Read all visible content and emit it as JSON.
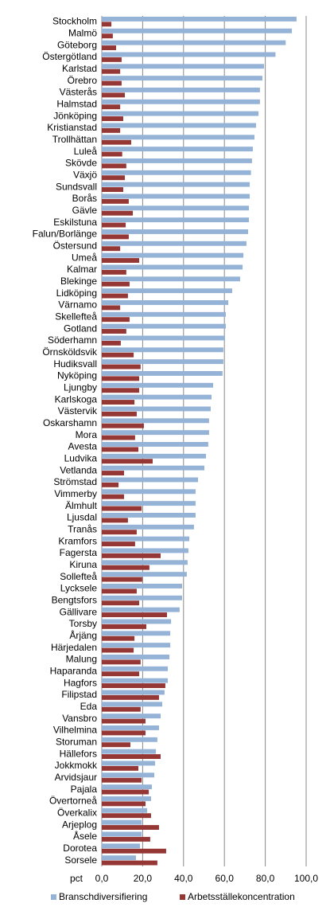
{
  "chart_data": {
    "type": "hbar",
    "x_label": "pct",
    "categories": [
      "Stockholm",
      "Malmö",
      "Göteborg",
      "Östergötland",
      "Karlstad",
      "Örebro",
      "Västerås",
      "Halmstad",
      "Jönköping",
      "Kristianstad",
      "Trollhättan",
      "Luleå",
      "Skövde",
      "Växjö",
      "Sundsvall",
      "Borås",
      "Gävle",
      "Eskilstuna",
      "Falun/Borlänge",
      "Östersund",
      "Umeå",
      "Kalmar",
      "Blekinge",
      "Lidköping",
      "Värnamo",
      "Skellefteå",
      "Gotland",
      "Söderhamn",
      "Örnsköldsvik",
      "Hudiksvall",
      "Nyköping",
      "Ljungby",
      "Karlskoga",
      "Västervik",
      "Oskarshamn",
      "Mora",
      "Avesta",
      "Ludvika",
      "Vetlanda",
      "Strömstad",
      "Vimmerby",
      "Älmhult",
      "Ljusdal",
      "Tranås",
      "Kramfors",
      "Fagersta",
      "Kiruna",
      "Sollefteå",
      "Lycksele",
      "Bengtsfors",
      "Gällivare",
      "Torsby",
      "Årjäng",
      "Härjedalen",
      "Malung",
      "Haparanda",
      "Hagfors",
      "Filipstad",
      "Eda",
      "Vansbro",
      "Vilhelmina",
      "Storuman",
      "Hällefors",
      "Jokkmokk",
      "Arvidsjaur",
      "Pajala",
      "Övertorneå",
      "Överkalix",
      "Arjeplog",
      "Åsele",
      "Dorotea",
      "Sorsele"
    ],
    "series": [
      {
        "name": "Branschdiversifiering",
        "color": "#95b3d7",
        "values": [
          95.3,
          93.0,
          90.0,
          85.0,
          79.4,
          78.6,
          77.4,
          77.4,
          76.7,
          75.5,
          74.7,
          73.9,
          73.5,
          73.0,
          72.4,
          72.4,
          72.0,
          72.0,
          71.6,
          70.8,
          69.3,
          68.9,
          67.7,
          63.8,
          61.9,
          60.7,
          60.7,
          60.3,
          59.5,
          59.5,
          59.1,
          54.5,
          53.7,
          53.3,
          52.5,
          52.5,
          52.1,
          51.0,
          50.2,
          47.1,
          45.9,
          45.9,
          45.9,
          45.1,
          42.8,
          42.4,
          42.0,
          41.6,
          39.3,
          39.3,
          38.1,
          33.9,
          33.5,
          33.5,
          33.1,
          32.3,
          32.3,
          30.7,
          29.6,
          28.8,
          28.0,
          27.2,
          26.5,
          26.1,
          25.7,
          24.5,
          24.1,
          22.2,
          19.5,
          19.5,
          18.7,
          16.7
        ]
      },
      {
        "name": "Arbetsställekoncentration",
        "color": "#953735",
        "values": [
          4.7,
          5.4,
          7.0,
          9.7,
          9.0,
          9.7,
          11.3,
          9.0,
          10.5,
          9.0,
          14.4,
          10.0,
          12.0,
          11.3,
          10.5,
          13.2,
          15.2,
          11.7,
          13.2,
          9.0,
          18.3,
          12.0,
          13.6,
          12.8,
          9.0,
          13.6,
          12.0,
          9.3,
          15.6,
          19.0,
          18.3,
          18.3,
          16.0,
          17.1,
          20.6,
          16.3,
          17.9,
          24.9,
          10.9,
          8.2,
          10.9,
          19.5,
          12.8,
          17.1,
          16.3,
          28.8,
          23.3,
          19.8,
          17.1,
          18.3,
          31.9,
          21.8,
          16.0,
          15.6,
          19.0,
          18.3,
          31.1,
          28.0,
          19.0,
          21.4,
          21.4,
          14.0,
          28.8,
          17.9,
          19.5,
          23.0,
          21.4,
          24.1,
          28.0,
          23.7,
          31.5,
          27.2
        ]
      }
    ],
    "xlim": [
      0,
      100
    ],
    "xticks": [
      {
        "value": 0,
        "label": "0,0"
      },
      {
        "value": 20,
        "label": "20,0"
      },
      {
        "value": 40,
        "label": "40,0"
      },
      {
        "value": 60,
        "label": "60,0"
      },
      {
        "value": 80,
        "label": "80,0"
      },
      {
        "value": 100,
        "label": "100,0"
      }
    ],
    "grid": true
  }
}
